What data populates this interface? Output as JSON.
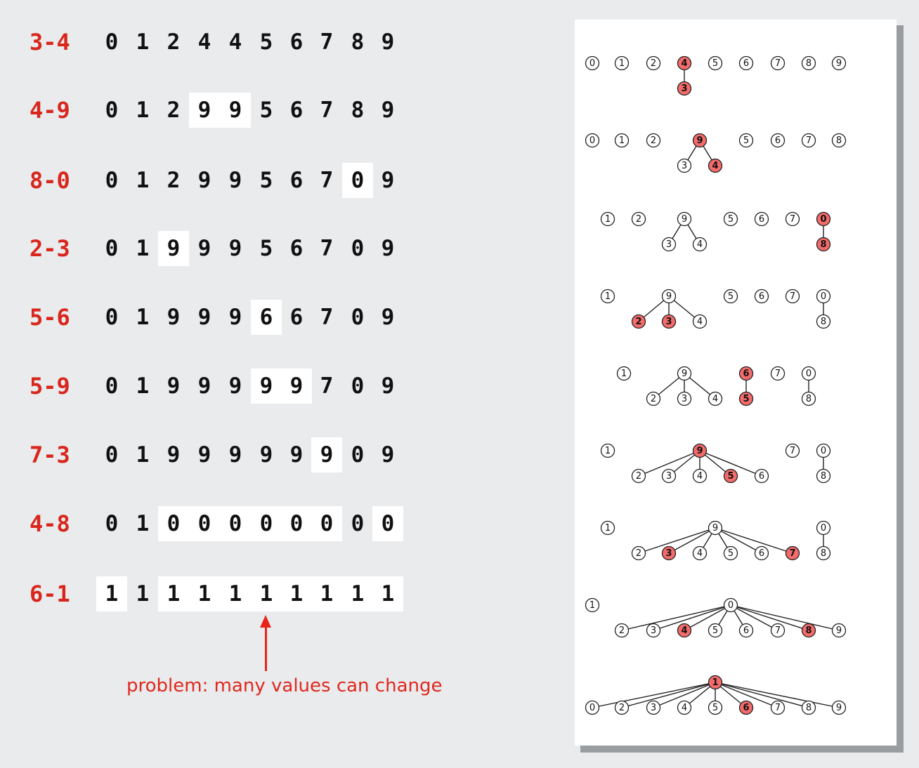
{
  "rows": [
    {
      "op": "3-4",
      "ids": [
        "0",
        "1",
        "2",
        "4",
        "4",
        "5",
        "6",
        "7",
        "8",
        "9"
      ],
      "changed": []
    },
    {
      "op": "4-9",
      "ids": [
        "0",
        "1",
        "2",
        "9",
        "9",
        "5",
        "6",
        "7",
        "8",
        "9"
      ],
      "changed": [
        3,
        4
      ]
    },
    {
      "op": "8-0",
      "ids": [
        "0",
        "1",
        "2",
        "9",
        "9",
        "5",
        "6",
        "7",
        "0",
        "9"
      ],
      "changed": [
        8
      ]
    },
    {
      "op": "2-3",
      "ids": [
        "0",
        "1",
        "9",
        "9",
        "9",
        "5",
        "6",
        "7",
        "0",
        "9"
      ],
      "changed": [
        2
      ]
    },
    {
      "op": "5-6",
      "ids": [
        "0",
        "1",
        "9",
        "9",
        "9",
        "6",
        "6",
        "7",
        "0",
        "9"
      ],
      "changed": [
        5
      ]
    },
    {
      "op": "5-9",
      "ids": [
        "0",
        "1",
        "9",
        "9",
        "9",
        "9",
        "9",
        "7",
        "0",
        "9"
      ],
      "changed": [
        5,
        6
      ]
    },
    {
      "op": "7-3",
      "ids": [
        "0",
        "1",
        "9",
        "9",
        "9",
        "9",
        "9",
        "9",
        "0",
        "9"
      ],
      "changed": [
        7
      ]
    },
    {
      "op": "4-8",
      "ids": [
        "0",
        "1",
        "0",
        "0",
        "0",
        "0",
        "0",
        "0",
        "0",
        "0"
      ],
      "changed": [
        2,
        3,
        4,
        5,
        6,
        7,
        9
      ]
    },
    {
      "op": "6-1",
      "ids": [
        "1",
        "1",
        "1",
        "1",
        "1",
        "1",
        "1",
        "1",
        "1",
        "1"
      ],
      "changed": [
        0,
        2,
        3,
        4,
        5,
        6,
        7,
        8,
        9
      ]
    }
  ],
  "note": "problem: many values can change",
  "colors": {
    "op": "#d9261c",
    "highlight_fill": "#f36b6b",
    "arrow": "#e8251c"
  },
  "forests": [
    {
      "roots": [
        {
          "id": "0"
        },
        {
          "id": "1"
        },
        {
          "id": "2"
        },
        {
          "id": "4",
          "hl": true,
          "children": [
            {
              "id": "3",
              "hl": true
            }
          ]
        },
        {
          "id": "5"
        },
        {
          "id": "6"
        },
        {
          "id": "7"
        },
        {
          "id": "8"
        },
        {
          "id": "9"
        }
      ]
    },
    {
      "roots": [
        {
          "id": "0"
        },
        {
          "id": "1"
        },
        {
          "id": "2"
        },
        {
          "id": "9",
          "hl": true,
          "children": [
            {
              "id": "3"
            },
            {
              "id": "4",
              "hl": true
            }
          ]
        },
        {
          "id": "5"
        },
        {
          "id": "6"
        },
        {
          "id": "7"
        },
        {
          "id": "8"
        }
      ]
    },
    {
      "roots": [
        {
          "id": "1"
        },
        {
          "id": "2"
        },
        {
          "id": "9",
          "children": [
            {
              "id": "3"
            },
            {
              "id": "4"
            }
          ]
        },
        {
          "id": "5"
        },
        {
          "id": "6"
        },
        {
          "id": "7"
        },
        {
          "id": "0",
          "hl": true,
          "children": [
            {
              "id": "8",
              "hl": true
            }
          ]
        }
      ]
    },
    {
      "roots": [
        {
          "id": "1"
        },
        {
          "id": "9",
          "children": [
            {
              "id": "2",
              "hl": true
            },
            {
              "id": "3",
              "hl": true
            },
            {
              "id": "4"
            }
          ]
        },
        {
          "id": "5"
        },
        {
          "id": "6"
        },
        {
          "id": "7"
        },
        {
          "id": "0",
          "children": [
            {
              "id": "8"
            }
          ]
        }
      ]
    },
    {
      "roots": [
        {
          "id": "1"
        },
        {
          "id": "9",
          "children": [
            {
              "id": "2"
            },
            {
              "id": "3"
            },
            {
              "id": "4"
            }
          ]
        },
        {
          "id": "6",
          "hl": true,
          "children": [
            {
              "id": "5",
              "hl": true
            }
          ]
        },
        {
          "id": "7"
        },
        {
          "id": "0",
          "children": [
            {
              "id": "8"
            }
          ]
        }
      ]
    },
    {
      "roots": [
        {
          "id": "1"
        },
        {
          "id": "9",
          "hl": true,
          "children": [
            {
              "id": "2"
            },
            {
              "id": "3"
            },
            {
              "id": "4"
            },
            {
              "id": "5",
              "hl": true
            },
            {
              "id": "6"
            }
          ]
        },
        {
          "id": "7"
        },
        {
          "id": "0",
          "children": [
            {
              "id": "8"
            }
          ]
        }
      ]
    },
    {
      "roots": [
        {
          "id": "1"
        },
        {
          "id": "9",
          "children": [
            {
              "id": "2"
            },
            {
              "id": "3",
              "hl": true
            },
            {
              "id": "4"
            },
            {
              "id": "5"
            },
            {
              "id": "6"
            },
            {
              "id": "7",
              "hl": true
            }
          ]
        },
        {
          "id": "0",
          "children": [
            {
              "id": "8"
            }
          ]
        }
      ]
    },
    {
      "roots": [
        {
          "id": "1"
        },
        {
          "id": "0",
          "children": [
            {
              "id": "2"
            },
            {
              "id": "3"
            },
            {
              "id": "4",
              "hl": true
            },
            {
              "id": "5"
            },
            {
              "id": "6"
            },
            {
              "id": "7"
            },
            {
              "id": "8",
              "hl": true
            },
            {
              "id": "9"
            }
          ]
        }
      ]
    },
    {
      "roots": [
        {
          "id": "1",
          "hl": true,
          "children": [
            {
              "id": "0"
            },
            {
              "id": "2"
            },
            {
              "id": "3"
            },
            {
              "id": "4"
            },
            {
              "id": "5"
            },
            {
              "id": "6",
              "hl": true
            },
            {
              "id": "7"
            },
            {
              "id": "8"
            },
            {
              "id": "9"
            }
          ]
        }
      ]
    }
  ]
}
